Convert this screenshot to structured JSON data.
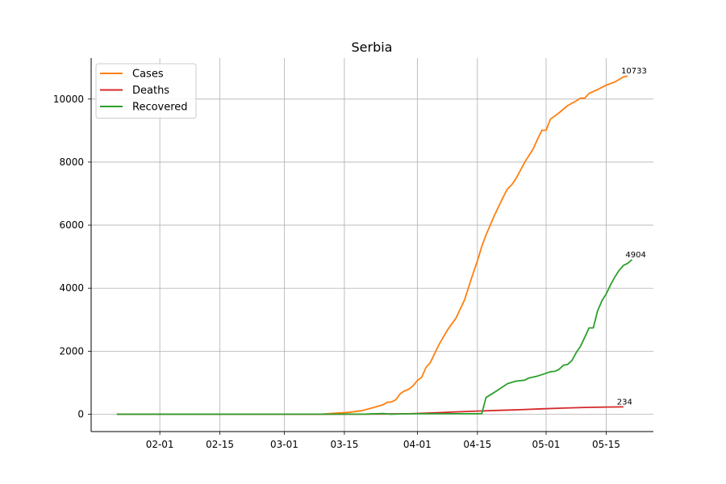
{
  "chart_data": {
    "type": "line",
    "title": "Serbia",
    "xlabel": "",
    "ylabel": "",
    "x_axis": {
      "kind": "date",
      "range": [
        "2020-01-16",
        "2020-05-26"
      ],
      "ticks": [
        {
          "date": "2020-02-01",
          "label": "02-01"
        },
        {
          "date": "2020-02-15",
          "label": "02-15"
        },
        {
          "date": "2020-03-01",
          "label": "03-01"
        },
        {
          "date": "2020-03-15",
          "label": "03-15"
        },
        {
          "date": "2020-04-01",
          "label": "04-01"
        },
        {
          "date": "2020-04-15",
          "label": "04-15"
        },
        {
          "date": "2020-05-01",
          "label": "05-01"
        },
        {
          "date": "2020-05-15",
          "label": "05-15"
        }
      ]
    },
    "ylim": [
      -550,
      11300
    ],
    "yticks": [
      0,
      2000,
      4000,
      6000,
      8000,
      10000
    ],
    "grid": true,
    "legend": "top-left",
    "series": [
      {
        "name": "Cases",
        "color": "#ff7f0e",
        "end_label": "10733",
        "points": [
          [
            "2020-01-22",
            0
          ],
          [
            "2020-03-05",
            0
          ],
          [
            "2020-03-10",
            5
          ],
          [
            "2020-03-13",
            35
          ],
          [
            "2020-03-16",
            60
          ],
          [
            "2020-03-19",
            110
          ],
          [
            "2020-03-22",
            220
          ],
          [
            "2020-03-24",
            300
          ],
          [
            "2020-03-25",
            380
          ],
          [
            "2020-03-26",
            390
          ],
          [
            "2020-03-27",
            460
          ],
          [
            "2020-03-28",
            650
          ],
          [
            "2020-03-29",
            740
          ],
          [
            "2020-03-30",
            790
          ],
          [
            "2020-03-31",
            900
          ],
          [
            "2020-04-01",
            1070
          ],
          [
            "2020-04-02",
            1170
          ],
          [
            "2020-04-03",
            1480
          ],
          [
            "2020-04-04",
            1630
          ],
          [
            "2020-04-06",
            2200
          ],
          [
            "2020-04-08",
            2670
          ],
          [
            "2020-04-10",
            3050
          ],
          [
            "2020-04-12",
            3630
          ],
          [
            "2020-04-14",
            4470
          ],
          [
            "2020-04-15",
            4870
          ],
          [
            "2020-04-16",
            5320
          ],
          [
            "2020-04-17",
            5690
          ],
          [
            "2020-04-19",
            6320
          ],
          [
            "2020-04-21",
            6890
          ],
          [
            "2020-04-22",
            7150
          ],
          [
            "2020-04-23",
            7280
          ],
          [
            "2020-04-24",
            7480
          ],
          [
            "2020-04-26",
            7990
          ],
          [
            "2020-04-28",
            8420
          ],
          [
            "2020-04-29",
            8720
          ],
          [
            "2020-04-30",
            9010
          ],
          [
            "2020-05-01",
            9010
          ],
          [
            "2020-05-02",
            9360
          ],
          [
            "2020-05-04",
            9560
          ],
          [
            "2020-05-06",
            9790
          ],
          [
            "2020-05-08",
            9940
          ],
          [
            "2020-05-09",
            10030
          ],
          [
            "2020-05-10",
            10030
          ],
          [
            "2020-05-11",
            10180
          ],
          [
            "2020-05-13",
            10300
          ],
          [
            "2020-05-15",
            10440
          ],
          [
            "2020-05-17",
            10540
          ],
          [
            "2020-05-19",
            10700
          ],
          [
            "2020-05-20",
            10733
          ]
        ]
      },
      {
        "name": "Deaths",
        "color": "#d62728",
        "end_label": "234",
        "points": [
          [
            "2020-01-22",
            0
          ],
          [
            "2020-03-20",
            2
          ],
          [
            "2020-03-25",
            7
          ],
          [
            "2020-03-30",
            16
          ],
          [
            "2020-04-05",
            45
          ],
          [
            "2020-04-10",
            74
          ],
          [
            "2020-04-15",
            99
          ],
          [
            "2020-04-20",
            122
          ],
          [
            "2020-04-25",
            144
          ],
          [
            "2020-04-30",
            173
          ],
          [
            "2020-05-05",
            194
          ],
          [
            "2020-05-10",
            214
          ],
          [
            "2020-05-15",
            228
          ],
          [
            "2020-05-19",
            234
          ]
        ]
      },
      {
        "name": "Recovered",
        "color": "#2ca02c",
        "end_label": "4904",
        "points": [
          [
            "2020-01-22",
            0
          ],
          [
            "2020-03-20",
            5
          ],
          [
            "2020-03-24",
            20
          ],
          [
            "2020-03-26",
            0
          ],
          [
            "2020-03-30",
            15
          ],
          [
            "2020-04-05",
            15
          ],
          [
            "2020-04-16",
            15
          ],
          [
            "2020-04-17",
            530
          ],
          [
            "2020-04-19",
            700
          ],
          [
            "2020-04-21",
            880
          ],
          [
            "2020-04-22",
            970
          ],
          [
            "2020-04-24",
            1050
          ],
          [
            "2020-04-26",
            1080
          ],
          [
            "2020-04-27",
            1150
          ],
          [
            "2020-04-29",
            1210
          ],
          [
            "2020-05-01",
            1300
          ],
          [
            "2020-05-02",
            1350
          ],
          [
            "2020-05-03",
            1360
          ],
          [
            "2020-05-04",
            1420
          ],
          [
            "2020-05-05",
            1550
          ],
          [
            "2020-05-06",
            1580
          ],
          [
            "2020-05-07",
            1700
          ],
          [
            "2020-05-08",
            1950
          ],
          [
            "2020-05-09",
            2150
          ],
          [
            "2020-05-10",
            2440
          ],
          [
            "2020-05-11",
            2740
          ],
          [
            "2020-05-12",
            2740
          ],
          [
            "2020-05-13",
            3280
          ],
          [
            "2020-05-14",
            3600
          ],
          [
            "2020-05-15",
            3820
          ],
          [
            "2020-05-16",
            4100
          ],
          [
            "2020-05-17",
            4350
          ],
          [
            "2020-05-18",
            4560
          ],
          [
            "2020-05-19",
            4720
          ],
          [
            "2020-05-20",
            4790
          ],
          [
            "2020-05-21",
            4904
          ]
        ]
      }
    ]
  }
}
